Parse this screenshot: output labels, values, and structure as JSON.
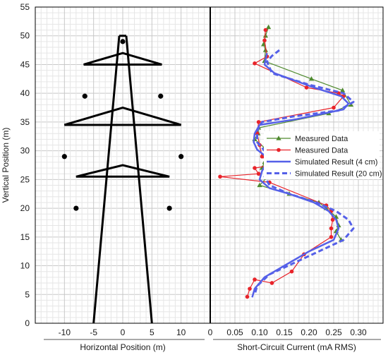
{
  "chart_data": {
    "type": "line",
    "ylabel": "Vertical Position (m)",
    "ylim": [
      0,
      55
    ],
    "yticks": [
      0,
      5,
      10,
      15,
      20,
      25,
      30,
      35,
      40,
      45,
      50,
      55
    ],
    "grid": true,
    "left_panel": {
      "xlabel": "Horizontal Position (m)",
      "xlim": [
        -15,
        15
      ],
      "xticks": [
        -10,
        -5,
        0,
        5,
        10
      ],
      "tower": {
        "legs": [
          [
            [
              -5,
              0
            ],
            [
              -0.6,
              50
            ]
          ],
          [
            [
              5,
              0
            ],
            [
              0.6,
              50
            ]
          ]
        ],
        "top": [
          [
            -0.6,
            50
          ],
          [
            0.6,
            50
          ]
        ],
        "cross_arms": [
          {
            "y": 45,
            "peak": 47,
            "half_width": 6.7
          },
          {
            "y": 34.5,
            "peak": 37.5,
            "half_width": 10
          },
          {
            "y": 25.5,
            "peak": 27.5,
            "half_width": 8
          }
        ],
        "conductors": [
          [
            0,
            49
          ],
          [
            -6.5,
            39.5
          ],
          [
            6.5,
            39.5
          ],
          [
            -10,
            29
          ],
          [
            10,
            29
          ],
          [
            -8,
            20
          ],
          [
            8,
            20
          ]
        ]
      }
    },
    "right_panel": {
      "xlabel": "Short-Circuit Current (mA RMS)",
      "xlim": [
        0,
        0.35
      ],
      "xticks": [
        0,
        0.05,
        0.1,
        0.15,
        0.2,
        0.25,
        0.3
      ],
      "xtick_labels": [
        "0",
        "0.05",
        "0.10",
        "0.15",
        "0.20",
        "0.25",
        "0.30"
      ],
      "legend_position": "right",
      "series": [
        {
          "name": "Measured Data",
          "style": "line-triangle",
          "color": "#4f8a2f",
          "points": [
            [
              0.118,
              51.5
            ],
            [
              0.112,
              50
            ],
            [
              0.108,
              48.5
            ],
            [
              0.112,
              47.5
            ],
            [
              0.11,
              45.6
            ],
            [
              0.205,
              42.5
            ],
            [
              0.268,
              40.5
            ],
            [
              0.285,
              38
            ],
            [
              0.24,
              36.5
            ],
            [
              0.098,
              34
            ],
            [
              0.097,
              33
            ],
            [
              0.09,
              32
            ],
            [
              0.11,
              30.5
            ],
            [
              0.115,
              29
            ],
            [
              0.11,
              28
            ],
            [
              0.105,
              27
            ],
            [
              0.125,
              26.3
            ],
            [
              0.1,
              24
            ],
            [
              0.16,
              22.5
            ],
            [
              0.22,
              21
            ],
            [
              0.235,
              20
            ],
            [
              0.255,
              18.5
            ],
            [
              0.26,
              17
            ],
            [
              0.255,
              16
            ],
            [
              0.265,
              14.5
            ]
          ]
        },
        {
          "name": "Measured Data",
          "style": "line-circle",
          "color": "#e8232a",
          "points": [
            [
              0.112,
              51
            ],
            [
              0.11,
              49.2
            ],
            [
              0.115,
              46.4
            ],
            [
              0.09,
              45.2
            ],
            [
              0.195,
              41
            ],
            [
              0.26,
              40
            ],
            [
              0.27,
              39.5
            ],
            [
              0.25,
              37.5
            ],
            [
              0.098,
              35
            ],
            [
              0.095,
              33
            ],
            [
              0.1,
              31
            ],
            [
              0.105,
              29
            ],
            [
              0.125,
              27.5
            ],
            [
              0.09,
              27
            ],
            [
              0.098,
              26
            ],
            [
              0.02,
              25.5
            ],
            [
              0.12,
              24.5
            ],
            [
              0.235,
              20.5
            ],
            [
              0.245,
              19.5
            ],
            [
              0.248,
              18
            ],
            [
              0.245,
              16.5
            ],
            [
              0.245,
              15
            ],
            [
              0.19,
              12
            ],
            [
              0.165,
              9
            ],
            [
              0.125,
              7
            ],
            [
              0.09,
              7.6
            ],
            [
              0.08,
              6
            ],
            [
              0.075,
              4.6
            ]
          ]
        },
        {
          "name": "Simulated Result (4 cm)",
          "style": "solid",
          "color": "#5560e8",
          "points": [
            [
              0.115,
              47
            ],
            [
              0.11,
              45
            ],
            [
              0.13,
              43.5
            ],
            [
              0.21,
              41
            ],
            [
              0.265,
              39.5
            ],
            [
              0.28,
              38.2
            ],
            [
              0.27,
              37.2
            ],
            [
              0.175,
              35.5
            ],
            [
              0.1,
              34.5
            ],
            [
              0.09,
              33
            ],
            [
              0.088,
              31.5
            ],
            [
              0.095,
              30.2
            ],
            [
              0.11,
              29.2
            ],
            [
              0.115,
              28
            ],
            [
              0.105,
              26.5
            ],
            [
              0.1,
              25
            ],
            [
              0.12,
              23.5
            ],
            [
              0.16,
              22.5
            ],
            [
              0.21,
              21
            ],
            [
              0.24,
              19.5
            ],
            [
              0.255,
              18
            ],
            [
              0.26,
              16.5
            ],
            [
              0.25,
              14.5
            ],
            [
              0.2,
              12.5
            ],
            [
              0.15,
              10
            ],
            [
              0.11,
              8
            ],
            [
              0.09,
              6
            ],
            [
              0.085,
              4.5
            ]
          ]
        },
        {
          "name": "Simulated Result (20 cm)",
          "style": "dashed",
          "color": "#5560e8",
          "points": [
            [
              0.14,
              47.5
            ],
            [
              0.125,
              46.5
            ],
            [
              0.115,
              45.5
            ],
            [
              0.125,
              43.5
            ],
            [
              0.2,
              41.5
            ],
            [
              0.27,
              40
            ],
            [
              0.29,
              38.5
            ],
            [
              0.26,
              37
            ],
            [
              0.17,
              36
            ],
            [
              0.105,
              35
            ],
            [
              0.095,
              33.5
            ],
            [
              0.095,
              31.5
            ],
            [
              0.11,
              30
            ],
            [
              0.125,
              28.5
            ],
            [
              0.12,
              27
            ],
            [
              0.11,
              25.5
            ],
            [
              0.12,
              24
            ],
            [
              0.16,
              22.5
            ],
            [
              0.215,
              21
            ],
            [
              0.255,
              19.5
            ],
            [
              0.28,
              18
            ],
            [
              0.29,
              16.5
            ],
            [
              0.27,
              14.5
            ],
            [
              0.22,
              12.5
            ],
            [
              0.17,
              10.5
            ],
            [
              0.12,
              8.5
            ],
            [
              0.095,
              6.5
            ],
            [
              0.09,
              5
            ]
          ]
        }
      ]
    }
  }
}
